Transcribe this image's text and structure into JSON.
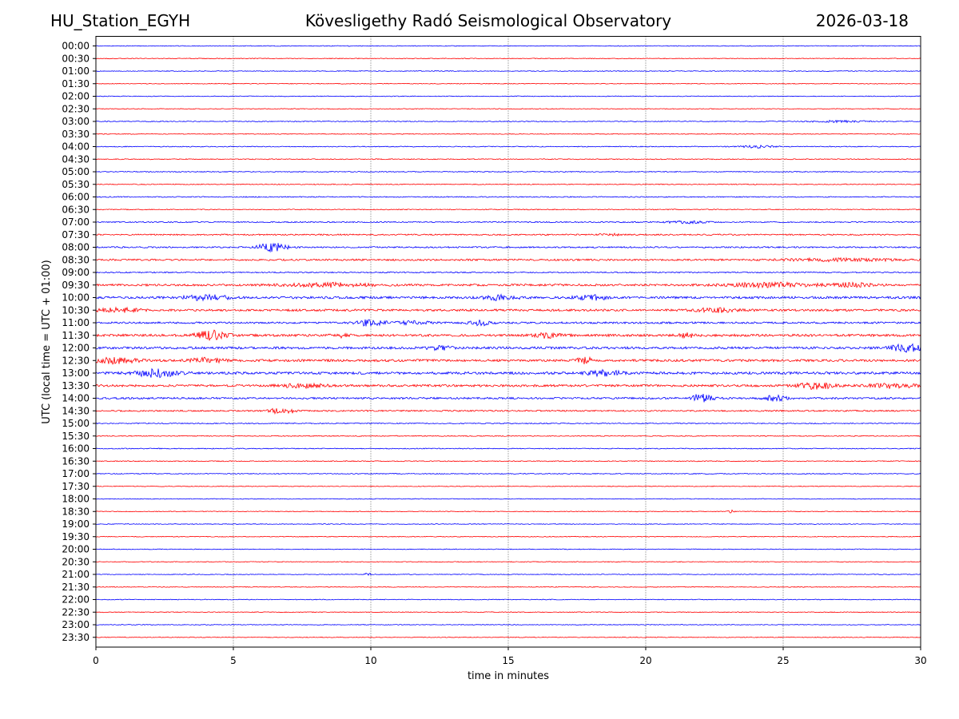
{
  "header": {
    "station": "HU_Station_EGYH",
    "observatory": "Kövesligethy Radó Seismological Observatory",
    "date": "2026-03-18"
  },
  "chart_data": {
    "type": "line",
    "title": "Kövesligethy Radó Seismological Observatory",
    "xlabel": "time in minutes",
    "ylabel": "UTC (local time = UTC + 01:00)",
    "xlim": [
      0,
      30
    ],
    "x_ticks": [
      0,
      5,
      10,
      15,
      20,
      25,
      30
    ],
    "grid": "vertical dotted at 5-minute intervals",
    "series_colors": [
      "#0000ff",
      "#ff0000"
    ],
    "rows": [
      "00:00",
      "00:30",
      "01:00",
      "01:30",
      "02:00",
      "02:30",
      "03:00",
      "03:30",
      "04:00",
      "04:30",
      "05:00",
      "05:30",
      "06:00",
      "06:30",
      "07:00",
      "07:30",
      "08:00",
      "08:30",
      "09:00",
      "09:30",
      "10:00",
      "10:30",
      "11:00",
      "11:30",
      "12:00",
      "12:30",
      "13:00",
      "13:30",
      "14:00",
      "14:30",
      "15:00",
      "15:30",
      "16:00",
      "16:30",
      "17:00",
      "17:30",
      "18:00",
      "18:30",
      "19:00",
      "19:30",
      "20:00",
      "20:30",
      "21:00",
      "21:30",
      "22:00",
      "22:30",
      "23:00",
      "23:30"
    ],
    "noise_level": [
      0.5,
      0.5,
      0.5,
      0.5,
      0.5,
      0.5,
      0.6,
      0.5,
      0.6,
      0.6,
      0.6,
      0.6,
      0.7,
      0.6,
      0.8,
      0.9,
      1.0,
      1.2,
      0.8,
      1.4,
      1.6,
      1.5,
      1.3,
      1.6,
      1.6,
      1.6,
      1.7,
      1.5,
      1.3,
      1.0,
      0.7,
      0.6,
      0.6,
      0.6,
      0.6,
      0.5,
      0.5,
      0.5,
      0.5,
      0.5,
      0.5,
      0.5,
      0.5,
      0.5,
      0.5,
      0.5,
      0.5,
      0.5
    ],
    "events": [
      {
        "row": 6,
        "minute": 27.0,
        "amp": 1.2,
        "width": 1.0
      },
      {
        "row": 8,
        "minute": 24.0,
        "amp": 1.8,
        "width": 0.6
      },
      {
        "row": 14,
        "minute": 21.5,
        "amp": 1.5,
        "width": 0.8
      },
      {
        "row": 15,
        "minute": 18.7,
        "amp": 1.3,
        "width": 0.4
      },
      {
        "row": 16,
        "minute": 6.4,
        "amp": 6.5,
        "width": 0.5
      },
      {
        "row": 17,
        "minute": 27.0,
        "amp": 1.6,
        "width": 2.0
      },
      {
        "row": 19,
        "minute": 8.5,
        "amp": 2.5,
        "width": 1.5
      },
      {
        "row": 19,
        "minute": 24.5,
        "amp": 3.0,
        "width": 1.5
      },
      {
        "row": 19,
        "minute": 27.5,
        "amp": 2.8,
        "width": 0.8
      },
      {
        "row": 20,
        "minute": 4.0,
        "amp": 3.5,
        "width": 0.8
      },
      {
        "row": 20,
        "minute": 14.7,
        "amp": 3.0,
        "width": 0.6
      },
      {
        "row": 20,
        "minute": 18.0,
        "amp": 3.0,
        "width": 0.6
      },
      {
        "row": 21,
        "minute": 0.8,
        "amp": 2.5,
        "width": 0.8
      },
      {
        "row": 21,
        "minute": 22.5,
        "amp": 2.5,
        "width": 0.8
      },
      {
        "row": 22,
        "minute": 10.0,
        "amp": 4.5,
        "width": 0.5
      },
      {
        "row": 22,
        "minute": 11.5,
        "amp": 2.5,
        "width": 0.6
      },
      {
        "row": 22,
        "minute": 14.0,
        "amp": 3.5,
        "width": 0.4
      },
      {
        "row": 23,
        "minute": 4.2,
        "amp": 6.5,
        "width": 0.5
      },
      {
        "row": 23,
        "minute": 8.9,
        "amp": 3.0,
        "width": 0.3
      },
      {
        "row": 23,
        "minute": 16.5,
        "amp": 3.5,
        "width": 0.5
      },
      {
        "row": 23,
        "minute": 21.5,
        "amp": 2.5,
        "width": 0.3
      },
      {
        "row": 24,
        "minute": 12.5,
        "amp": 2.5,
        "width": 0.4
      },
      {
        "row": 24,
        "minute": 29.5,
        "amp": 4.5,
        "width": 0.6
      },
      {
        "row": 25,
        "minute": 0.7,
        "amp": 3.5,
        "width": 0.8
      },
      {
        "row": 25,
        "minute": 4.0,
        "amp": 3.0,
        "width": 0.6
      },
      {
        "row": 25,
        "minute": 17.8,
        "amp": 4.0,
        "width": 0.3
      },
      {
        "row": 26,
        "minute": 2.2,
        "amp": 5.0,
        "width": 0.8
      },
      {
        "row": 26,
        "minute": 18.5,
        "amp": 3.5,
        "width": 0.6
      },
      {
        "row": 27,
        "minute": 7.5,
        "amp": 2.5,
        "width": 0.8
      },
      {
        "row": 27,
        "minute": 26.2,
        "amp": 4.5,
        "width": 0.6
      },
      {
        "row": 27,
        "minute": 29.0,
        "amp": 3.0,
        "width": 0.8
      },
      {
        "row": 28,
        "minute": 22.0,
        "amp": 5.5,
        "width": 0.4
      },
      {
        "row": 28,
        "minute": 24.7,
        "amp": 3.5,
        "width": 0.4
      },
      {
        "row": 29,
        "minute": 6.5,
        "amp": 3.0,
        "width": 0.3
      },
      {
        "row": 29,
        "minute": 7.1,
        "amp": 3.0,
        "width": 0.2
      },
      {
        "row": 37,
        "minute": 23.1,
        "amp": 2.0,
        "width": 0.1
      },
      {
        "row": 42,
        "minute": 9.9,
        "amp": 2.5,
        "width": 0.1
      }
    ]
  }
}
